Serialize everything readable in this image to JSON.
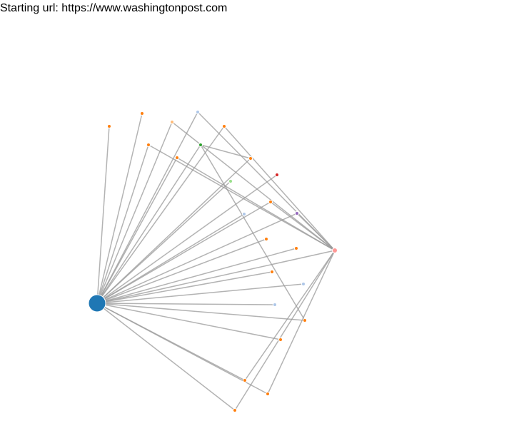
{
  "header": {
    "text": "Starting url: https://www.washingtonpost.com"
  },
  "graph": {
    "link_color": "#999999",
    "node_stroke": "#ffffff",
    "nodes": [
      {
        "id": "root",
        "group": "root",
        "color": "#1f77b4"
      },
      {
        "id": "n1",
        "color": "#ff7f0e"
      },
      {
        "id": "n2",
        "color": "#ff7f0e"
      },
      {
        "id": "n3",
        "color": "#ffbb78"
      },
      {
        "id": "n4",
        "color": "#aec7e8"
      },
      {
        "id": "n5",
        "color": "#ff7f0e"
      },
      {
        "id": "n6",
        "color": "#ff7f0e"
      },
      {
        "id": "n7",
        "color": "#2ca02c"
      },
      {
        "id": "n8",
        "color": "#ff7f0e"
      },
      {
        "id": "n9",
        "color": "#ff7f0e"
      },
      {
        "id": "n10",
        "color": "#98df8a"
      },
      {
        "id": "n11",
        "color": "#d62728"
      },
      {
        "id": "n12",
        "color": "#ff7f0e"
      },
      {
        "id": "n13",
        "color": "#aec7e8"
      },
      {
        "id": "n14",
        "color": "#9467bd"
      },
      {
        "id": "n15",
        "color": "#ff7f0e"
      },
      {
        "id": "hub",
        "color": "#ff9896"
      },
      {
        "id": "n16",
        "color": "#ff7f0e"
      },
      {
        "id": "n17",
        "color": "#ff7f0e"
      },
      {
        "id": "n18",
        "color": "#aec7e8"
      },
      {
        "id": "n19",
        "color": "#aec7e8"
      },
      {
        "id": "n20",
        "color": "#ff7f0e"
      },
      {
        "id": "n21",
        "color": "#ff7f0e"
      },
      {
        "id": "n22",
        "color": "#ff7f0e"
      },
      {
        "id": "n23",
        "color": "#ff7f0e"
      },
      {
        "id": "n24",
        "color": "#ff7f0e"
      }
    ],
    "links": [
      [
        "root",
        "n1"
      ],
      [
        "root",
        "n2"
      ],
      [
        "root",
        "n3"
      ],
      [
        "root",
        "n4"
      ],
      [
        "root",
        "n5"
      ],
      [
        "root",
        "n6"
      ],
      [
        "root",
        "n7"
      ],
      [
        "root",
        "n8"
      ],
      [
        "root",
        "n9"
      ],
      [
        "root",
        "n10"
      ],
      [
        "root",
        "n11"
      ],
      [
        "root",
        "n12"
      ],
      [
        "root",
        "n13"
      ],
      [
        "root",
        "n14"
      ],
      [
        "root",
        "n15"
      ],
      [
        "root",
        "n16"
      ],
      [
        "root",
        "n17"
      ],
      [
        "root",
        "n18"
      ],
      [
        "root",
        "n19"
      ],
      [
        "root",
        "n20"
      ],
      [
        "root",
        "n21"
      ],
      [
        "root",
        "n22"
      ],
      [
        "root",
        "n23"
      ],
      [
        "root",
        "n24"
      ],
      [
        "root",
        "hub"
      ],
      [
        "hub",
        "n3"
      ],
      [
        "hub",
        "n4"
      ],
      [
        "hub",
        "n5"
      ],
      [
        "hub",
        "n6"
      ],
      [
        "hub",
        "n8"
      ],
      [
        "hub",
        "n12"
      ],
      [
        "hub",
        "n14"
      ],
      [
        "hub",
        "n22"
      ],
      [
        "hub",
        "n23"
      ],
      [
        "hub",
        "n24"
      ],
      [
        "n7",
        "n20"
      ],
      [
        "n7",
        "n9"
      ]
    ]
  }
}
